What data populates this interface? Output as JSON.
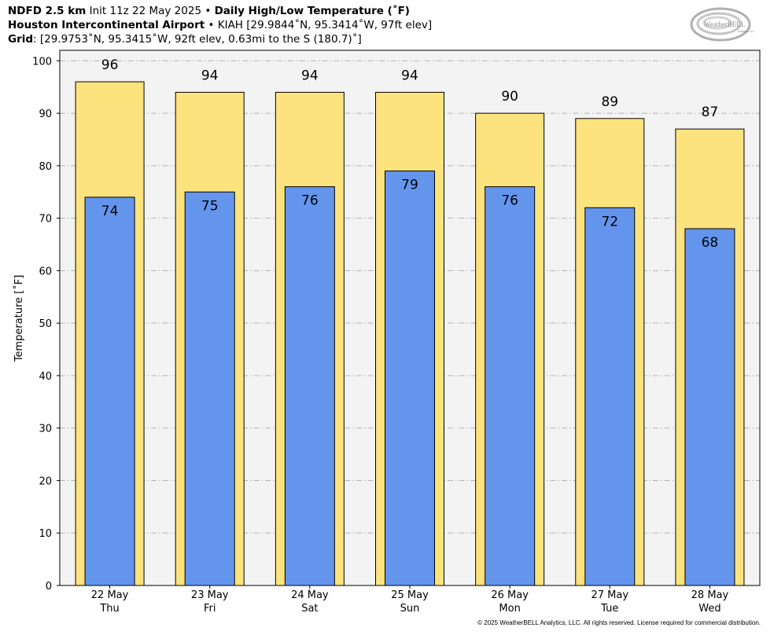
{
  "header": {
    "line1": {
      "model": "NDFD 2.5 km",
      "init": " Init 11z 22 May 2025 • ",
      "product": "Daily High/Low Temperature (˚F)"
    },
    "line2": {
      "station": "Houston Intercontinental Airport",
      "details": " • KIAH [29.9844˚N, 95.3414˚W, 97ft elev]"
    },
    "line3": {
      "label": "Grid",
      "details": ": [29.9753˚N, 95.3415˚W, 92ft elev, 0.63mi to the S (180.7)˚]"
    }
  },
  "logo": {
    "text": "WeatherBELL",
    "subtext": "Analytics LLC"
  },
  "copyright": "© 2025 WeatherBELL Analytics, LLC. All rights reserved. License required for commercial distribution.",
  "colors": {
    "high_fill": "#fde37d",
    "low_fill": "#6495ed",
    "plot_bg": "#f4f3f4",
    "grid": "#b4b4b4"
  },
  "chart_data": {
    "type": "bar",
    "title": "Daily High/Low Temperature (˚F)",
    "ylabel": "Temperature [˚F]",
    "xlabel": "",
    "ylim": [
      0,
      102
    ],
    "yticks": [
      0,
      10,
      20,
      30,
      40,
      50,
      60,
      70,
      80,
      90,
      100
    ],
    "grid": true,
    "categories": [
      "22 May\nThu",
      "23 May\nFri",
      "24 May\nSat",
      "25 May\nSun",
      "26 May\nMon",
      "27 May\nTue",
      "28 May\nWed"
    ],
    "category_dates": [
      "22 May",
      "23 May",
      "24 May",
      "25 May",
      "26 May",
      "27 May",
      "28 May"
    ],
    "category_days": [
      "Thu",
      "Fri",
      "Sat",
      "Sun",
      "Mon",
      "Tue",
      "Wed"
    ],
    "series": [
      {
        "values": [
          96,
          94,
          94,
          94,
          90,
          89,
          87
        ]
      },
      {
        "values": [
          74,
          75,
          76,
          79,
          76,
          72,
          68
        ]
      }
    ]
  }
}
